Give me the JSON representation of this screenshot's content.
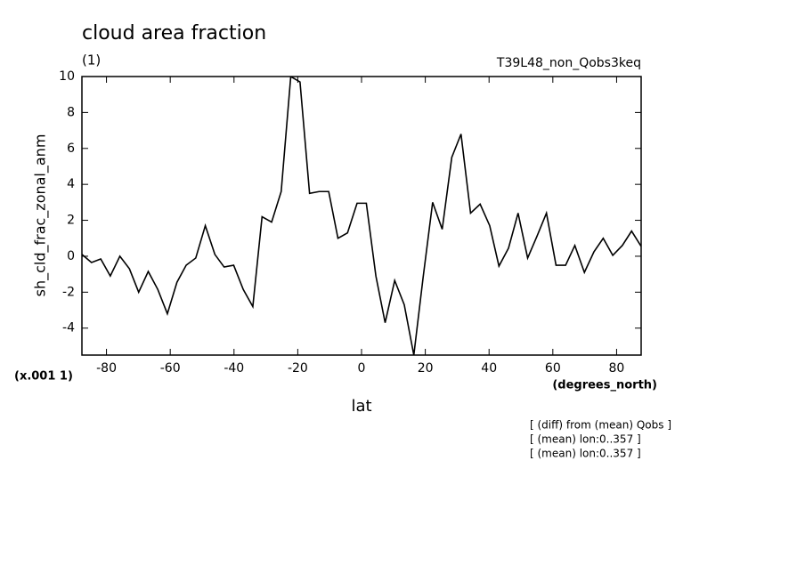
{
  "chart_data": {
    "type": "line",
    "title": "cloud area fraction",
    "subtitle": "(1)",
    "run_label": "T39L48_non_Qobs3keq",
    "ylabel": "sh_cld_frac_zonal_anm",
    "xlabel": "lat",
    "x_unit": "(degrees_north)",
    "y_scale_note": "(x.001 1)",
    "notes": [
      "[ (diff) from (mean) Qobs ]",
      "[ (mean) lon:0..357 ]",
      "[ (mean) lon:0..357 ]"
    ],
    "x": [
      -87.7,
      -84.7,
      -81.8,
      -78.8,
      -75.8,
      -72.8,
      -69.9,
      -66.9,
      -63.9,
      -60.9,
      -57.9,
      -55.0,
      -52.0,
      -49.0,
      -46.0,
      -43.1,
      -40.1,
      -37.1,
      -34.1,
      -31.2,
      -28.2,
      -25.2,
      -22.2,
      -19.3,
      -16.3,
      -13.3,
      -10.3,
      -7.4,
      -4.4,
      -1.4,
      1.5,
      4.5,
      7.4,
      10.4,
      13.4,
      16.4,
      19.3,
      22.3,
      25.3,
      28.3,
      31.2,
      34.2,
      37.2,
      40.2,
      43.1,
      46.1,
      49.1,
      52.1,
      55.0,
      58.0,
      61.0,
      64.0,
      66.9,
      69.9,
      72.9,
      75.8,
      78.8,
      81.8,
      84.7,
      87.7
    ],
    "series": [
      {
        "color": "#000000",
        "values": [
          0.1,
          -0.35,
          -0.15,
          -1.1,
          0,
          -0.7,
          -2.0,
          -0.85,
          -1.85,
          -3.2,
          -1.45,
          -0.5,
          -0.1,
          1.7,
          0.1,
          -0.6,
          -0.5,
          -1.85,
          -2.8,
          2.2,
          1.9,
          3.6,
          10.0,
          9.7,
          3.5,
          3.6,
          3.6,
          1.0,
          1.3,
          2.95,
          2.95,
          -1.1,
          -3.7,
          -1.35,
          -2.7,
          -5.5,
          -1.2,
          3.0,
          1.5,
          5.5,
          6.8,
          2.4,
          2.9,
          1.7,
          -0.55,
          0.45,
          2.4,
          -0.1,
          1.1,
          2.4,
          -0.5,
          -0.5,
          0.6,
          -0.9,
          0.25,
          1.0,
          0.05,
          0.6,
          1.4,
          0.55
        ]
      }
    ],
    "xlim": [
      -87.7,
      87.7
    ],
    "ylim": [
      -5.5,
      10
    ],
    "xticks": [
      -80,
      -60,
      -40,
      -20,
      0,
      20,
      40,
      60,
      80
    ],
    "yticks": [
      -4,
      -2,
      0,
      2,
      4,
      6,
      8,
      10
    ]
  }
}
